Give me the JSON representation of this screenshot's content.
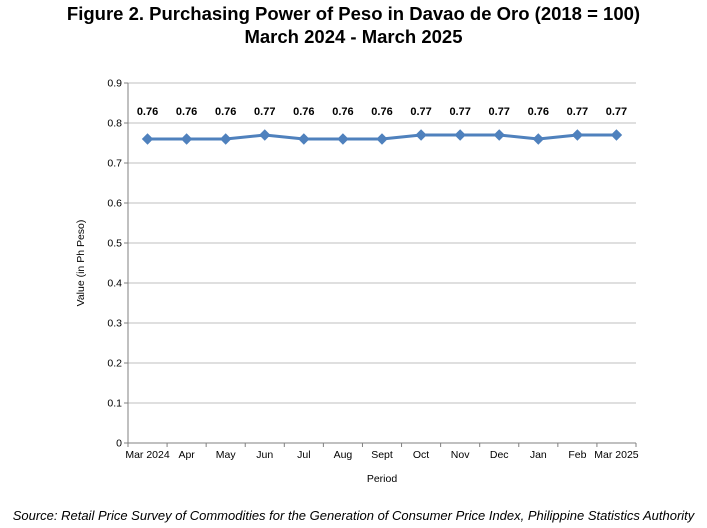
{
  "chart_data": {
    "type": "line",
    "title": "Figure 2. Purchasing Power of Peso in Davao de Oro (2018 = 100)",
    "subtitle": "March 2024 - March 2025",
    "xlabel": "Period",
    "ylabel": "Value (in Ph Peso)",
    "ylim": [
      0,
      0.9
    ],
    "yticks": [
      "0",
      "0.1",
      "0.2",
      "0.3",
      "0.4",
      "0.5",
      "0.6",
      "0.7",
      "0.8",
      "0.9"
    ],
    "grid": true,
    "legend": "none",
    "categories": [
      "Mar 2024",
      "Apr",
      "May",
      "Jun",
      "Jul",
      "Aug",
      "Sept",
      "Oct",
      "Nov",
      "Dec",
      "Jan",
      "Feb",
      "Mar 2025"
    ],
    "series": [
      {
        "values": [
          0.76,
          0.76,
          0.76,
          0.77,
          0.76,
          0.76,
          0.76,
          0.77,
          0.77,
          0.77,
          0.76,
          0.77,
          0.77
        ],
        "labels": [
          "0.76",
          "0.76",
          "0.76",
          "0.77",
          "0.76",
          "0.76",
          "0.76",
          "0.77",
          "0.77",
          "0.77",
          "0.76",
          "0.77",
          "0.77"
        ],
        "color": "#4f81bd"
      }
    ],
    "gridline_color": "#bfbfbf",
    "axis_color": "#808080"
  },
  "source_note": "Source: Retail Price Survey of Commodities for the Generation of Consumer Price Index, Philippine Statistics Authority"
}
